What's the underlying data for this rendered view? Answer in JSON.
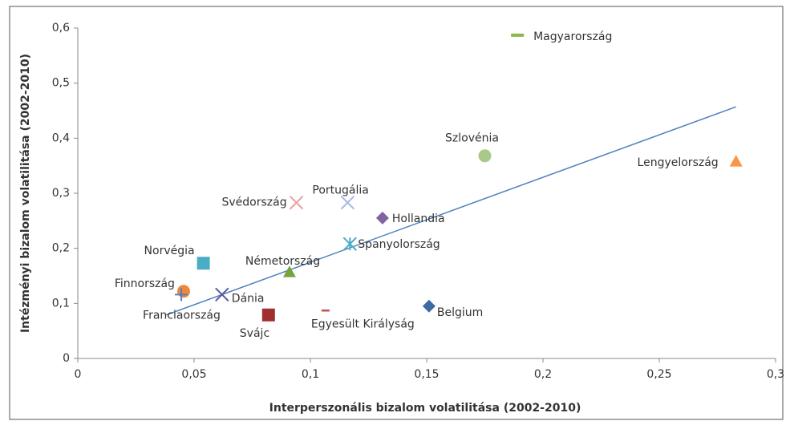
{
  "chart_data": {
    "type": "scatter",
    "xlabel": "Interperszonális bizalom volatilitása (2002-2010)",
    "ylabel": "Intézményi bizalom volatilitása (2002-2010)",
    "xlim": [
      0,
      0.3
    ],
    "ylim": [
      0,
      0.6
    ],
    "xticks": [
      0,
      {
        "value": 0.05,
        "label": "0,05"
      },
      {
        "value": 0.1,
        "label": "0,1"
      },
      {
        "value": 0.15,
        "label": "0,15"
      },
      {
        "value": 0.2,
        "label": "0,2"
      },
      {
        "value": 0.25,
        "label": "0,25"
      },
      {
        "value": 0.3,
        "label": "0,3"
      }
    ],
    "yticks": [
      0,
      {
        "value": 0.1,
        "label": "0,1"
      },
      {
        "value": 0.2,
        "label": "0,2"
      },
      {
        "value": 0.3,
        "label": "0,3"
      },
      {
        "value": 0.4,
        "label": "0,4"
      },
      {
        "value": 0.5,
        "label": "0,5"
      },
      {
        "value": 0.6,
        "label": "0,6"
      }
    ],
    "grid": false,
    "trendline": {
      "color": "#4f81bd",
      "x": [
        0.038,
        0.283
      ],
      "y": [
        0.079,
        0.457
      ]
    },
    "points": [
      {
        "name": "Magyarország",
        "color": "#8cb84a",
        "marker": "dash",
        "x": 0.189,
        "y": 0.587
      },
      {
        "name": "Szlovénia",
        "color": "#a9c98a",
        "marker": "circle",
        "x": 0.175,
        "y": 0.368
      },
      {
        "name": "Lengyelország",
        "color": "#f79646",
        "marker": "triangle",
        "x": 0.283,
        "y": 0.358
      },
      {
        "name": "Svédország",
        "color": "#e6a0a0",
        "marker": "x",
        "x": 0.094,
        "y": 0.283
      },
      {
        "name": "Portugália",
        "color": "#a5b8e0",
        "marker": "x",
        "x": 0.116,
        "y": 0.283
      },
      {
        "name": "Hollandia",
        "color": "#8064a2",
        "marker": "diamond",
        "x": 0.131,
        "y": 0.255
      },
      {
        "name": "Spanyolország",
        "color": "#4bacc6",
        "marker": "star",
        "x": 0.117,
        "y": 0.208
      },
      {
        "name": "Norvégia",
        "color": "#4bacc6",
        "marker": "square",
        "x": 0.054,
        "y": 0.173
      },
      {
        "name": "Németország",
        "color": "#77a33e",
        "marker": "triangle",
        "x": 0.091,
        "y": 0.157
      },
      {
        "name": "Finnország",
        "color": "#f0883a",
        "marker": "circle",
        "x": 0.0455,
        "y": 0.122
      },
      {
        "name": "Dánia",
        "color": "#5a5aa0",
        "marker": "x",
        "x": 0.062,
        "y": 0.116
      },
      {
        "name": "Franciaország",
        "color": "#4f81bd",
        "marker": "plus",
        "x": 0.0445,
        "y": 0.116
      },
      {
        "name": "Svájc",
        "color": "#a03030",
        "marker": "square",
        "x": 0.082,
        "y": 0.079
      },
      {
        "name": "Egyesült Királyság",
        "color": "#c0504d",
        "marker": "dash",
        "x": 0.1065,
        "y": 0.087
      },
      {
        "name": "Belgium",
        "color": "#3d6aa5",
        "marker": "diamond",
        "x": 0.151,
        "y": 0.095
      }
    ]
  }
}
